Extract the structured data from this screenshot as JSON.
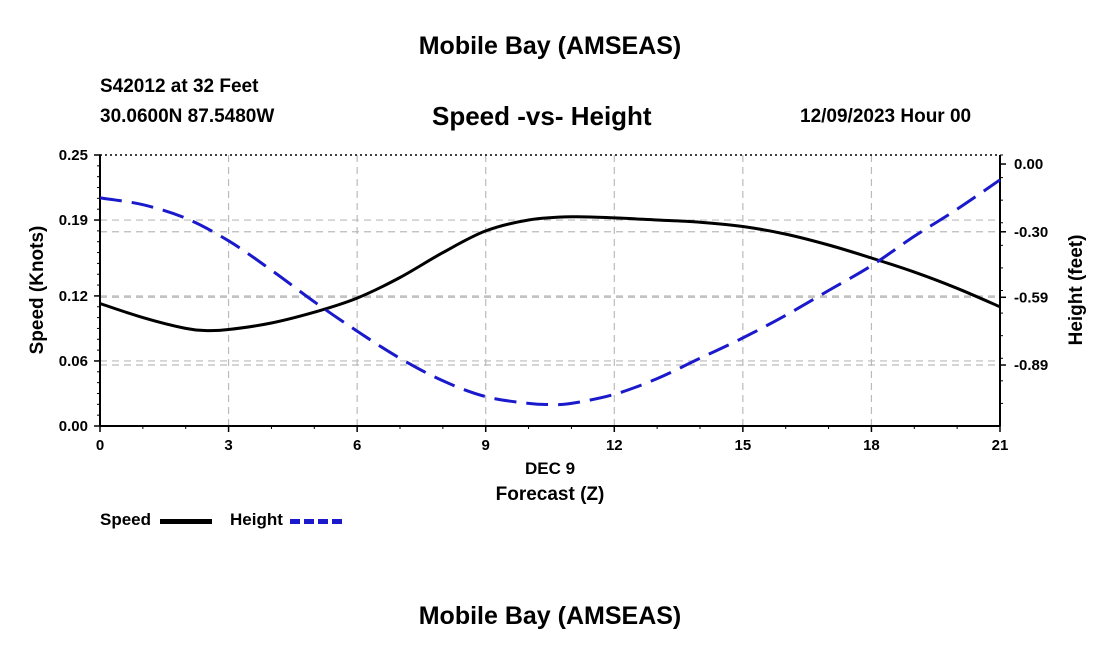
{
  "header": {
    "title": "Mobile Bay (AMSEAS)",
    "station": "S42012 at 32 Feet",
    "coords": "30.0600N  87.5480W",
    "subtitle": "Speed -vs- Height",
    "date": "12/09/2023 Hour 00"
  },
  "footer": {
    "title": "Mobile Bay (AMSEAS)"
  },
  "legend": {
    "speed_label": "Speed",
    "height_label": "Height"
  },
  "colors": {
    "speed": "#000000",
    "height": "#1a1acc",
    "grid": "#bbbbbb"
  },
  "chart_data": {
    "type": "line",
    "title": "Speed -vs- Height",
    "xlabel": "Forecast (Z)",
    "x_sublabel": "DEC 9",
    "ylabel": "Speed (Knots)",
    "y2label": "Height (feet)",
    "xlim": [
      0,
      21
    ],
    "ylim": [
      0,
      0.25
    ],
    "y2lim": [
      -1.16,
      0.04
    ],
    "x_ticks": [
      0,
      3,
      6,
      9,
      12,
      15,
      18,
      21
    ],
    "y_ticks": [
      0.0,
      0.06,
      0.12,
      0.19,
      0.25
    ],
    "y_tick_labels": [
      "0.00",
      "0.06",
      "0.12",
      "0.19",
      "0.25"
    ],
    "y2_ticks": [
      0.0,
      -0.3,
      -0.59,
      -0.89
    ],
    "y2_tick_labels": [
      "0.00",
      "-0.30",
      "-0.59",
      "-0.89"
    ],
    "grid": true,
    "series": [
      {
        "name": "Speed",
        "axis": "left",
        "style": "solid",
        "x": [
          0,
          1,
          2,
          2.5,
          3,
          4,
          5,
          6,
          7,
          8,
          9,
          10,
          11,
          12,
          13,
          14,
          15,
          16,
          17,
          18,
          19,
          20,
          21
        ],
        "values": [
          0.113,
          0.1,
          0.09,
          0.088,
          0.089,
          0.095,
          0.105,
          0.118,
          0.137,
          0.16,
          0.18,
          0.19,
          0.193,
          0.192,
          0.19,
          0.188,
          0.184,
          0.177,
          0.167,
          0.155,
          0.142,
          0.127,
          0.11
        ]
      },
      {
        "name": "Height",
        "axis": "right",
        "style": "dashed",
        "x": [
          0,
          1,
          2,
          3,
          4,
          5,
          6,
          7,
          8,
          9,
          10,
          10.5,
          11,
          12,
          13,
          14,
          15,
          16,
          17,
          18,
          19,
          20,
          21
        ],
        "values": [
          -0.15,
          -0.18,
          -0.24,
          -0.34,
          -0.47,
          -0.61,
          -0.74,
          -0.86,
          -0.96,
          -1.03,
          -1.06,
          -1.065,
          -1.06,
          -1.02,
          -0.95,
          -0.86,
          -0.77,
          -0.67,
          -0.56,
          -0.45,
          -0.32,
          -0.2,
          -0.07
        ]
      }
    ]
  }
}
